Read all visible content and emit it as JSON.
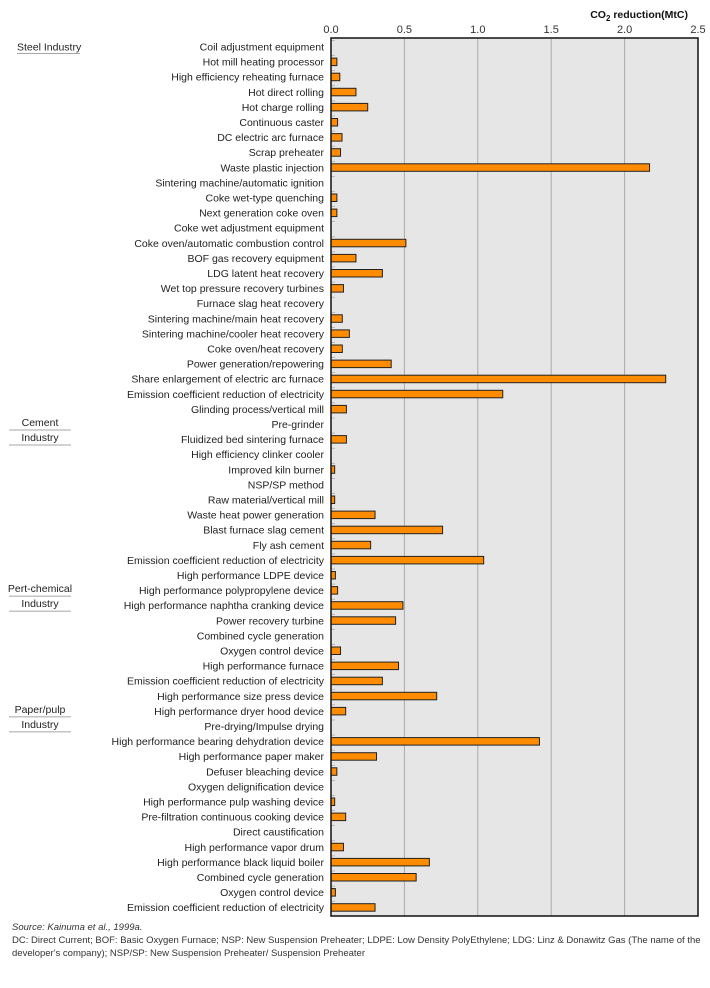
{
  "chart_data": {
    "type": "bar",
    "orientation": "horizontal",
    "title": "",
    "xlabel": "CO2 reduction(MtC)",
    "xlabel_parts": {
      "main": "CO",
      "sub": "2",
      "rest": " reduction(MtC)"
    },
    "ylabel": "",
    "xlim": [
      0,
      2.5
    ],
    "xticks": [
      "0.0",
      "0.5",
      "1.0",
      "1.5",
      "2.0",
      "2.5"
    ],
    "xtick_values": [
      0,
      0.5,
      1.0,
      1.5,
      2.0,
      2.5
    ],
    "grid": true,
    "legend": "none",
    "bar_color": "#ff8c00",
    "plot_bg": "#e6e6e6",
    "groups": [
      {
        "name_lines": [
          "Steel Industry"
        ],
        "start": 0
      },
      {
        "name_lines": [
          "Cement",
          "Industry"
        ],
        "start": 25
      },
      {
        "name_lines": [
          "Pert-chemical",
          "Industry"
        ],
        "start": 36
      },
      {
        "name_lines": [
          "Paper/pulp",
          "Industry"
        ],
        "start": 44
      }
    ],
    "categories": [
      "Coil adjustment equipment",
      "Hot mill heating processor",
      "High efficiency reheating furnace",
      "Hot direct rolling",
      "Hot charge rolling",
      "Continuous caster",
      "DC electric arc furnace",
      "Scrap preheater",
      "Waste plastic injection",
      "Sintering machine/automatic ignition",
      "Coke wet-type quenching",
      "Next generation coke oven",
      "Coke wet adjustment equipment",
      "Coke oven/automatic combustion control",
      "BOF gas recovery equipment",
      "LDG latent heat recovery",
      "Wet top pressure recovery turbines",
      "Furnace slag heat recovery",
      "Sintering machine/main heat recovery",
      "Sintering machine/cooler heat recovery",
      "Coke oven/heat recovery",
      "Power generation/repowering",
      "Share enlargement of electric arc furnace",
      "Emission coefficient reduction of electricity",
      "Glinding process/vertical mill",
      "Pre-grinder",
      "Fluidized bed sintering furnace",
      "High efficiency clinker cooler",
      "Improved kiln burner",
      "NSP/SP method",
      "Raw material/vertical mill",
      "Waste heat power generation",
      "Blast furnace slag cement",
      "Fly ash cement",
      "Emission coefficient reduction of electricity",
      "High performance LDPE device",
      "High performance polypropylene device",
      "High performance naphtha cranking device",
      "Power recovery turbine",
      "Combined cycle generation",
      "Oxygen control device",
      "High performance furnace",
      "Emission coefficient reduction of electricity",
      "High performance size press device",
      "High performance dryer hood device",
      "Pre-drying/Impulse drying",
      "High performance bearing dehydration device",
      "High performance paper maker",
      "Defuser bleaching device",
      "Oxygen delignification device",
      "High performance pulp washing device",
      "Pre-filtration continuous cooking device",
      "Direct caustification",
      "High performance vapor drum",
      "High performance black liquid boiler",
      "Combined cycle generation",
      "Oxygen control device",
      "Emission coefficient reduction of electricity"
    ],
    "values": [
      0,
      0.04,
      0.06,
      0.17,
      0.25,
      0.045,
      0.075,
      0.065,
      2.17,
      0,
      0.04,
      0.04,
      0,
      0.51,
      0.17,
      0.35,
      0.085,
      0,
      0.077,
      0.125,
      0.077,
      0.41,
      2.28,
      1.17,
      0.105,
      0,
      0.105,
      0,
      0.025,
      0,
      0.025,
      0.3,
      0.76,
      0.27,
      1.04,
      0.03,
      0.045,
      0.49,
      0.44,
      0,
      0.065,
      0.46,
      0.35,
      0.72,
      0.1,
      0,
      1.42,
      0.31,
      0.04,
      0,
      0.025,
      0.1,
      0,
      0.085,
      0.67,
      0.58,
      0.03,
      0.3
    ]
  },
  "notes": {
    "source": "Source: Kainuma et al., 1999a.",
    "abbreviations": "DC: Direct Current; BOF: Basic Oxygen Furnace; NSP: New Suspension Preheater; LDPE: Low Density PolyEthylene; LDG: Linz & Donawitz Gas (The name of the developer's company); NSP/SP: New Suspension Preheater/ Suspension Preheater"
  }
}
